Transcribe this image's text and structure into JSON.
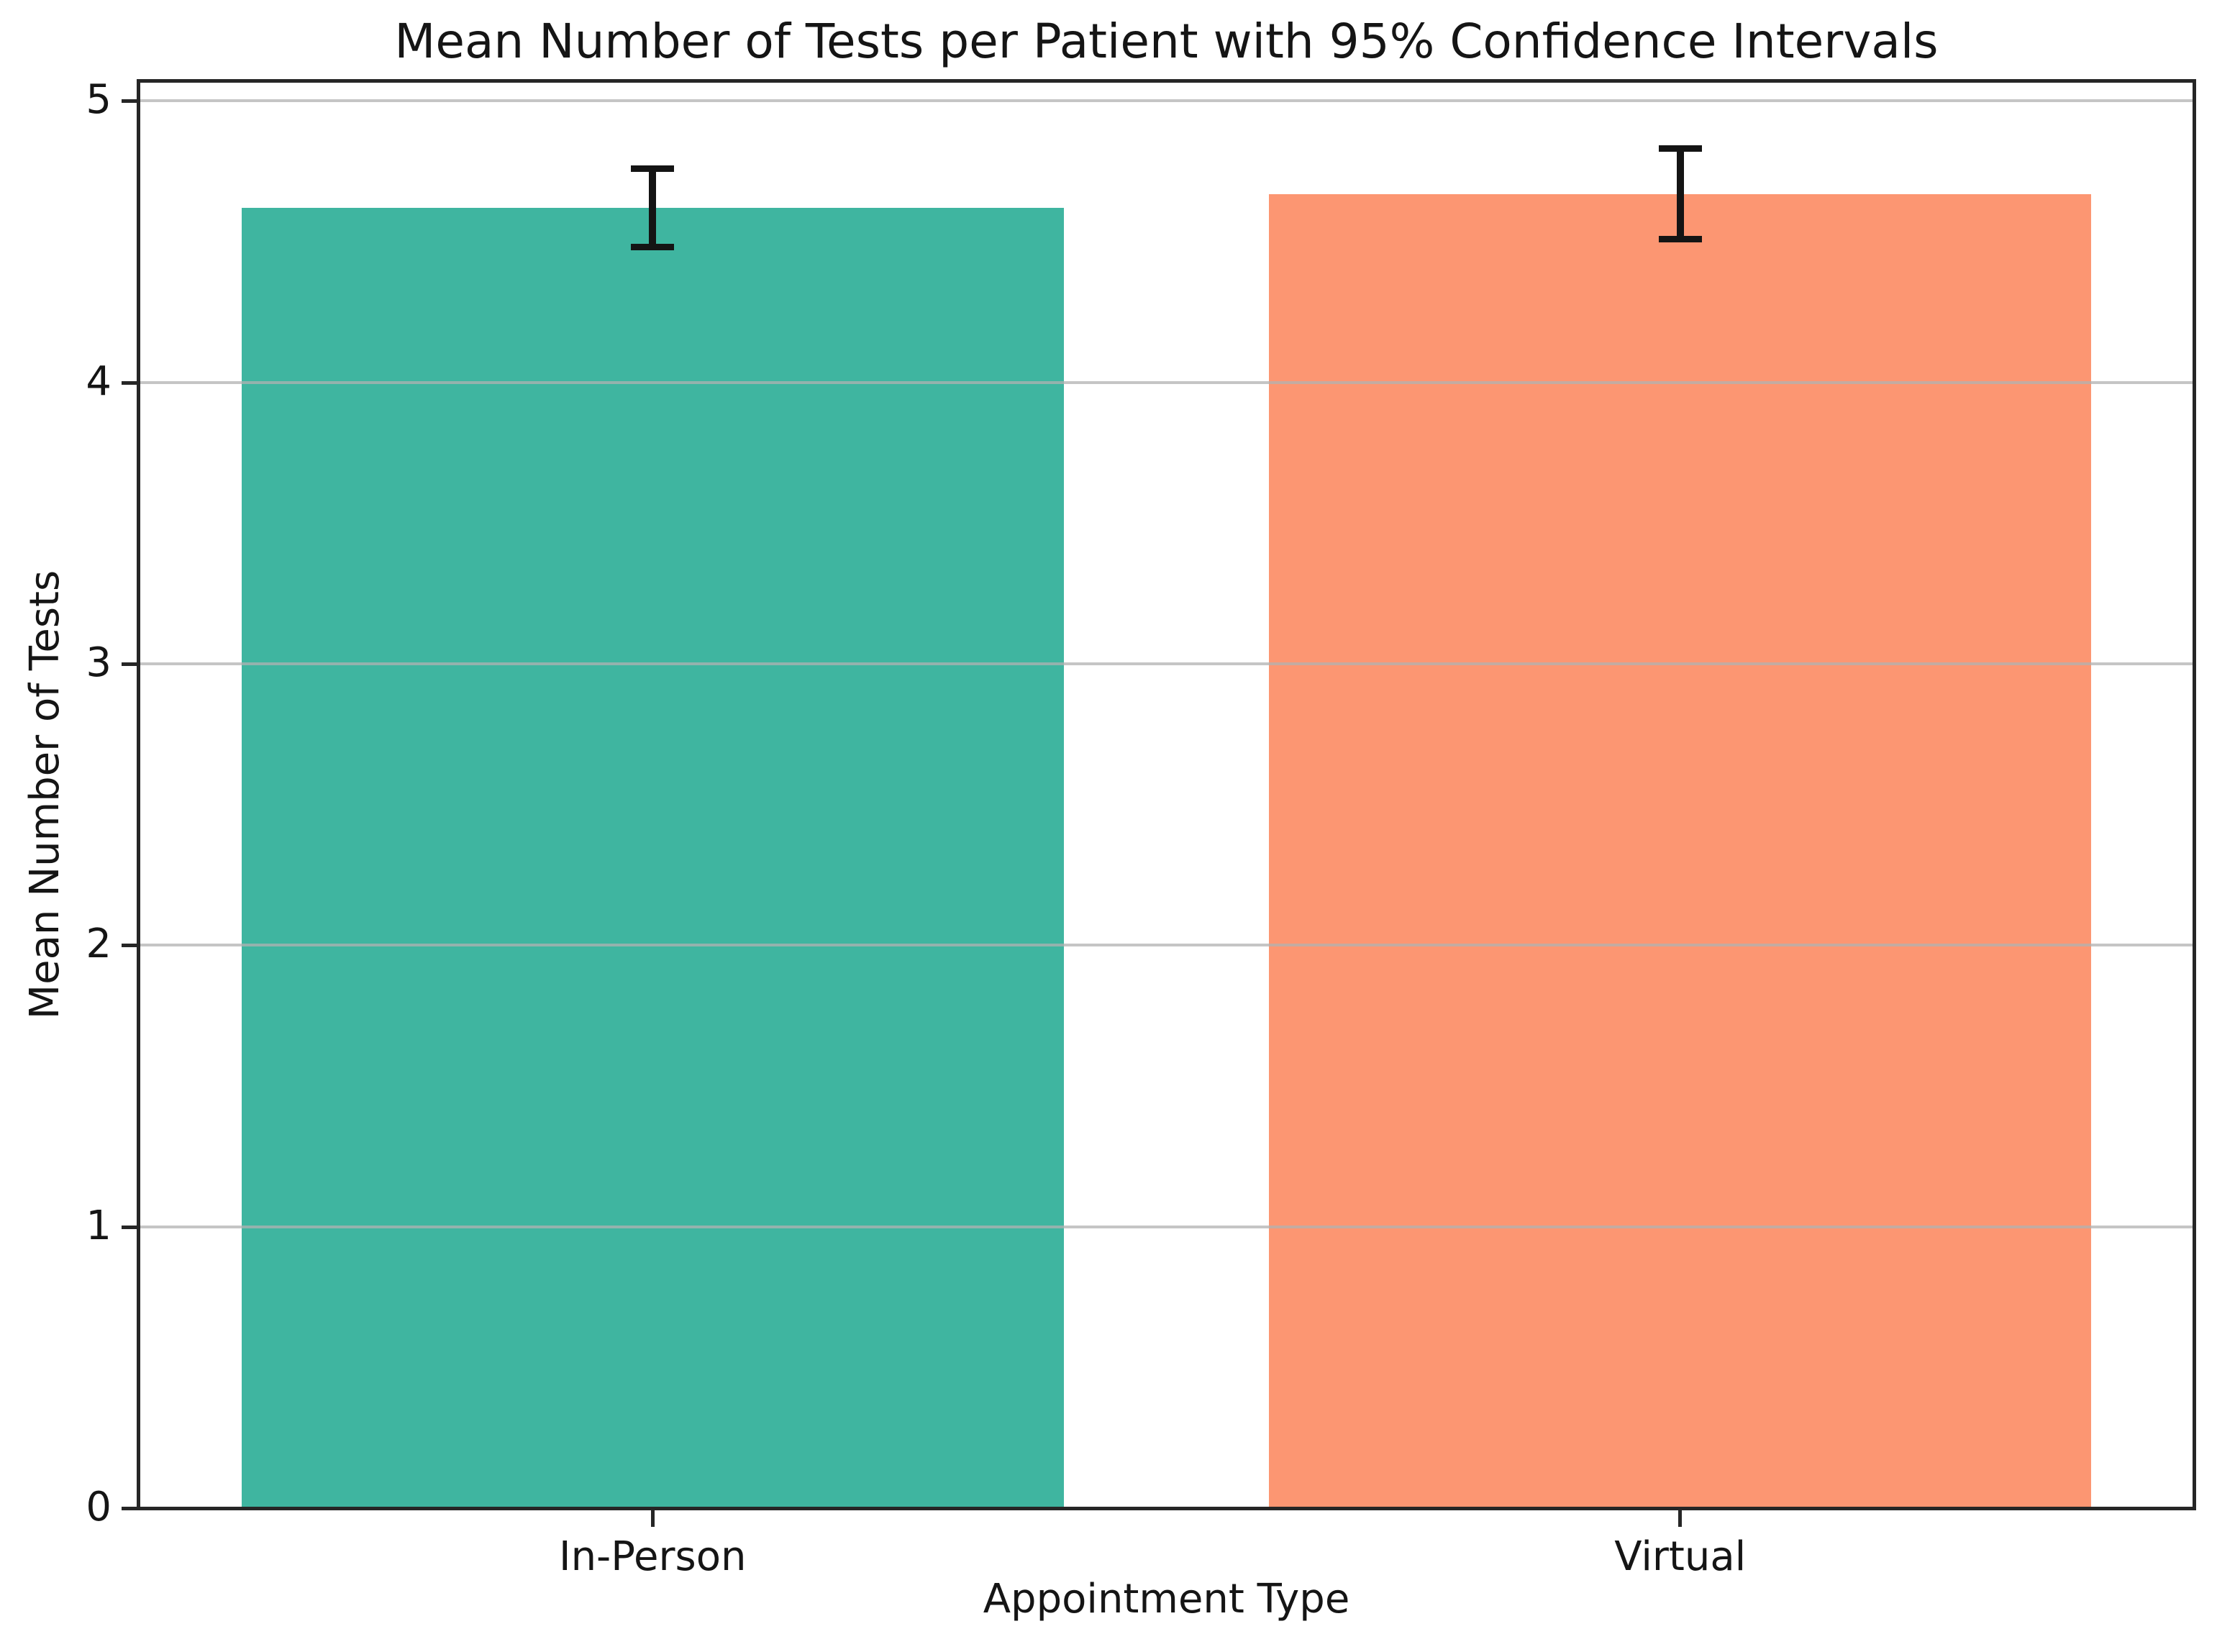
{
  "chart_data": {
    "type": "bar",
    "title": "Mean Number of Tests per Patient with 95% Confidence Intervals",
    "xlabel": "Appointment Type",
    "ylabel": "Mean Number of Tests",
    "categories": [
      "In-Person",
      "Virtual"
    ],
    "series": [
      {
        "name": "Mean Number of Tests",
        "values": [
          4.62,
          4.67
        ]
      }
    ],
    "error_bars": {
      "kind": "95% confidence interval",
      "lower": [
        4.48,
        4.51
      ],
      "upper": [
        4.76,
        4.83
      ]
    },
    "bar_colors": [
      "#3FB5A0",
      "#FC9672"
    ],
    "errorbar_color": "#141414",
    "yticks": [
      0,
      1,
      2,
      3,
      4,
      5
    ],
    "ytick_labels": [
      "0",
      "1",
      "2",
      "3",
      "4",
      "5"
    ],
    "ylim": [
      0,
      5.07
    ],
    "grid": true,
    "grid_color": "#b2b2b2",
    "grid_above_bars": true,
    "legend": "none",
    "bar_width_fraction": 0.8
  }
}
